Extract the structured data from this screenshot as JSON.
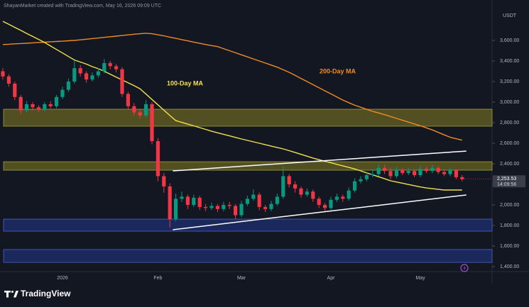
{
  "chart_data": {
    "type": "candlestick",
    "header": "ShayanMarket created with TradingView.com, May 16, 2026 09:09 UTC",
    "currency": "USDT",
    "brand": "TradingView",
    "ylim": [
      1352,
      3890
    ],
    "yticks": [
      {
        "value": 1400,
        "label": "1,400.00"
      },
      {
        "value": 1600,
        "label": "1,600.00"
      },
      {
        "value": 1800,
        "label": "1,800.00"
      },
      {
        "value": 2000,
        "label": "2,000.00"
      },
      {
        "value": 2200,
        "label": "2,200.00"
      },
      {
        "value": 2400,
        "label": "2,400.00"
      },
      {
        "value": 2600,
        "label": "2,600.00"
      },
      {
        "value": 2800,
        "label": "2,800.00"
      },
      {
        "value": 3000,
        "label": "3,000.00"
      },
      {
        "value": 3200,
        "label": "3,200.00"
      },
      {
        "value": 3400,
        "label": "3,400.00"
      },
      {
        "value": 3600,
        "label": "3,600.00"
      }
    ],
    "categories": [
      null,
      null,
      null,
      null,
      null,
      null,
      null,
      null,
      null,
      null,
      "2026",
      null,
      null,
      null,
      null,
      null,
      null,
      null,
      null,
      null,
      null,
      null,
      null,
      null,
      null,
      null,
      "Feb",
      null,
      null,
      null,
      null,
      null,
      null,
      null,
      null,
      null,
      null,
      null,
      null,
      null,
      "Mar",
      null,
      null,
      null,
      null,
      null,
      null,
      null,
      null,
      null,
      null,
      null,
      null,
      null,
      null,
      "Apr",
      null,
      null,
      null,
      null,
      null,
      null,
      null,
      null,
      null,
      null,
      null,
      null,
      null,
      null,
      "May",
      null,
      null,
      null,
      null,
      null,
      null,
      null
    ],
    "up_color": "#089981",
    "down_color": "#f23645",
    "open": [
      3300,
      3250,
      3180,
      3050,
      2920,
      2980,
      2950,
      2930,
      2980,
      2960,
      3050,
      3120,
      3200,
      3330,
      3280,
      3220,
      3260,
      3300,
      3380,
      3350,
      3320,
      3080,
      2960,
      2900,
      2870,
      2980,
      2620,
      2280,
      2180,
      1860,
      2060,
      2080,
      2000,
      2070,
      1980,
      1970,
      1990,
      1960,
      2000,
      1990,
      1900,
      2010,
      2060,
      2100,
      1980,
      1960,
      2010,
      2080,
      2280,
      2200,
      2160,
      2100,
      2130,
      2060,
      2000,
      1970,
      2050,
      2080,
      2060,
      2140,
      2230,
      2250,
      2290,
      2300,
      2360,
      2330,
      2280,
      2340,
      2310,
      2330,
      2290,
      2350,
      2330,
      2360,
      2320,
      2300,
      2340,
      2270
    ],
    "high": [
      3330,
      3270,
      3200,
      3070,
      3010,
      3000,
      2970,
      3000,
      3010,
      3070,
      3150,
      3230,
      3400,
      3360,
      3300,
      3290,
      3330,
      3420,
      3400,
      3370,
      3340,
      3100,
      2990,
      2930,
      3020,
      3000,
      2650,
      2310,
      2210,
      2110,
      2130,
      2100,
      2100,
      2090,
      2010,
      2020,
      2010,
      2030,
      2030,
      2010,
      2040,
      2090,
      2150,
      2120,
      2000,
      2040,
      2110,
      2370,
      2300,
      2230,
      2180,
      2160,
      2150,
      2080,
      2020,
      2080,
      2110,
      2100,
      2170,
      2260,
      2280,
      2320,
      2340,
      2400,
      2390,
      2360,
      2370,
      2360,
      2360,
      2350,
      2380,
      2370,
      2390,
      2380,
      2340,
      2360,
      2350,
      2290
    ],
    "low": [
      3220,
      3150,
      3020,
      2880,
      2900,
      2920,
      2900,
      2910,
      2940,
      2940,
      3030,
      3100,
      3180,
      3250,
      3190,
      3200,
      3240,
      3280,
      3320,
      3290,
      3050,
      2930,
      2870,
      2840,
      2850,
      2590,
      2230,
      2120,
      1780,
      1840,
      2030,
      1960,
      1980,
      1950,
      1940,
      1950,
      1930,
      1940,
      1960,
      1860,
      1880,
      1990,
      2040,
      1950,
      1930,
      1940,
      1990,
      2060,
      2170,
      2120,
      2070,
      2080,
      2030,
      1970,
      1940,
      1950,
      2030,
      2030,
      2040,
      2120,
      2210,
      2230,
      2270,
      2280,
      2300,
      2250,
      2260,
      2290,
      2290,
      2270,
      2270,
      2310,
      2310,
      2300,
      2280,
      2280,
      2250,
      2230
    ],
    "close": [
      3250,
      3180,
      3050,
      2920,
      2980,
      2950,
      2930,
      2980,
      2960,
      3050,
      3120,
      3200,
      3330,
      3280,
      3220,
      3260,
      3300,
      3380,
      3350,
      3320,
      3080,
      2960,
      2900,
      2870,
      2980,
      2620,
      2280,
      2180,
      1860,
      2060,
      2080,
      2000,
      2070,
      1980,
      1970,
      1990,
      1960,
      2000,
      1990,
      1900,
      2010,
      2060,
      2100,
      1980,
      1960,
      2010,
      2080,
      2280,
      2200,
      2160,
      2100,
      2130,
      2060,
      2000,
      1970,
      2050,
      2080,
      2060,
      2140,
      2230,
      2250,
      2290,
      2300,
      2360,
      2330,
      2280,
      2340,
      2310,
      2330,
      2290,
      2350,
      2330,
      2360,
      2320,
      2300,
      2340,
      2270,
      2250
    ],
    "lines": [
      {
        "name": "200-Day MA",
        "color": "#f08a24",
        "values": [
          3560,
          3563,
          3567,
          3570,
          3573,
          3577,
          3580,
          3583,
          3587,
          3590,
          3593,
          3597,
          3600,
          3606,
          3612,
          3618,
          3624,
          3630,
          3636,
          3642,
          3648,
          3654,
          3660,
          3665,
          3670,
          3665,
          3655,
          3645,
          3632,
          3620,
          3608,
          3596,
          3584,
          3572,
          3560,
          3550,
          3540,
          3520,
          3500,
          3480,
          3460,
          3440,
          3420,
          3400,
          3380,
          3360,
          3340,
          3315,
          3290,
          3260,
          3230,
          3200,
          3170,
          3140,
          3110,
          3080,
          3050,
          3020,
          2995,
          2970,
          2950,
          2930,
          2910,
          2895,
          2878,
          2860,
          2842,
          2824,
          2806,
          2788,
          2770,
          2750,
          2730,
          2706,
          2682,
          2658,
          2644,
          2630
        ]
      },
      {
        "name": "100-Day MA",
        "color": "#f2e14a",
        "values": [
          3786,
          3757,
          3727,
          3698,
          3668,
          3639,
          3610,
          3580,
          3546,
          3512,
          3478,
          3444,
          3410,
          3390,
          3370,
          3345,
          3325,
          3300,
          3272,
          3244,
          3216,
          3188,
          3160,
          3130,
          3078,
          3026,
          2974,
          2922,
          2870,
          2820,
          2803,
          2786,
          2769,
          2752,
          2735,
          2717,
          2702,
          2687,
          2672,
          2657,
          2642,
          2628,
          2614,
          2600,
          2586,
          2572,
          2558,
          2545,
          2528,
          2510,
          2492,
          2474,
          2456,
          2440,
          2425,
          2410,
          2395,
          2380,
          2365,
          2350,
          2331,
          2312,
          2293,
          2274,
          2255,
          2235,
          2223,
          2211,
          2199,
          2187,
          2175,
          2165,
          2158,
          2151,
          2145,
          2145,
          2145,
          2145
        ]
      }
    ],
    "zones": [
      {
        "range": [
          2766,
          2931
        ],
        "color": "#5e5b22",
        "border": "#a39d3a"
      },
      {
        "range": [
          2338,
          2420
        ],
        "color": "#5e5b22",
        "border": "#a39d3a"
      },
      {
        "range": [
          1745,
          1862
        ],
        "color": "#1d2c66",
        "border": "#4a66c2"
      },
      {
        "range": [
          1441,
          1566
        ],
        "color": "#1d2c66",
        "border": "#4a66c2"
      }
    ],
    "trendlines": [
      {
        "x": [
          28.5,
          77.7
        ],
        "values": [
          2331,
          2524
        ],
        "color": "#ffffff"
      },
      {
        "x": [
          28.5,
          77.7
        ],
        "values": [
          1759,
          2097
        ],
        "color": "#ffffff"
      }
    ],
    "last_price": {
      "value": 2253.53,
      "label": "2,253.53"
    },
    "countdown": "14:09:56"
  }
}
